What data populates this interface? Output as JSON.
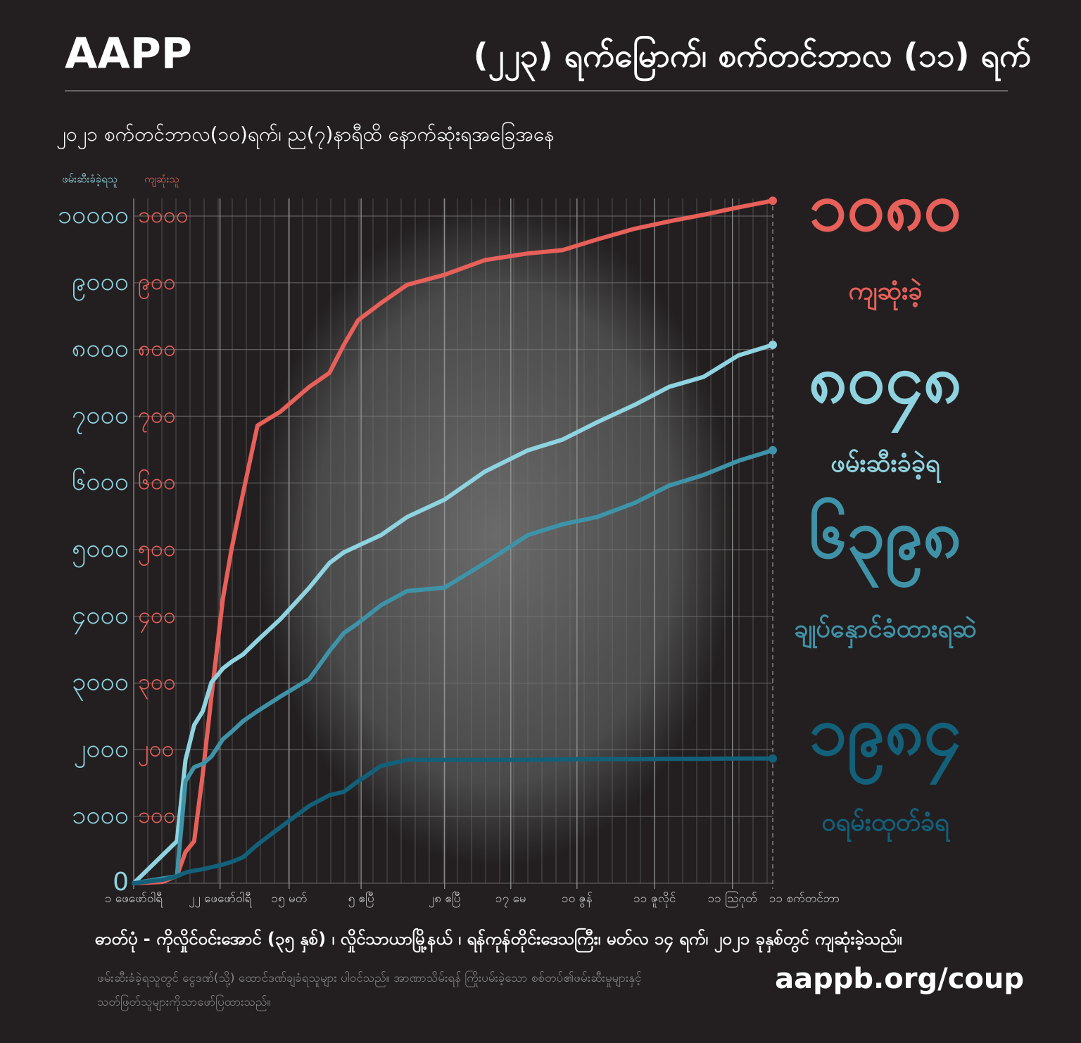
{
  "header": {
    "brand": "AAPP",
    "title": "(၂၂၃) ရက်မြောက်၊ စက်တင်ဘာလ (၁၁) ရက်"
  },
  "chart_data": {
    "type": "line",
    "subtitle": "၂၀၂၁ စက်တင်ဘာလ(၁၀)ရက်၊ ည(၇)နာရီထိ နောက်ဆုံးရအခြေအနေ",
    "ylabel": "ဖမ်းဆီးခံခဲ့ရသူ",
    "y2label": "ကျဆုံးသူ",
    "x": [
      0,
      10,
      15,
      18,
      21,
      24,
      27,
      31,
      34,
      38,
      43,
      51,
      61,
      68,
      73,
      78,
      86,
      95,
      108,
      122,
      137,
      149,
      161,
      174,
      186,
      198,
      210,
      222
    ],
    "xlim": [
      0,
      222
    ],
    "xticks": [
      {
        "value": 0,
        "label": "၁ ဖေဖော်ဝါရီ"
      },
      {
        "value": 30,
        "label": "၂၂ ဖေဖော်ဝါရီ"
      },
      {
        "value": 54,
        "label": "၁၅ မတ်"
      },
      {
        "value": 79,
        "label": "၅ ဧပြီ"
      },
      {
        "value": 108,
        "label": "၂၈ ဧပြီ"
      },
      {
        "value": 131,
        "label": "၁၇ မေ"
      },
      {
        "value": 154,
        "label": "၁၀ ဇွန်"
      },
      {
        "value": 181,
        "label": "၁၁ ဇူလိုင်"
      },
      {
        "value": 208,
        "label": "၁၁ ဩဂုတ်"
      },
      {
        "value": 222,
        "label": "၁၁ စက်တင်ဘာ"
      }
    ],
    "ylim": [
      0,
      10000
    ],
    "yticks": [
      0,
      {
        "value": 1000,
        "label": "၁၀၀၀"
      },
      {
        "value": 2000,
        "label": "၂၀၀၀"
      },
      {
        "value": 3000,
        "label": "၃၀၀၀"
      },
      {
        "value": 4000,
        "label": "၄၀၀၀"
      },
      {
        "value": 5000,
        "label": "၅၀၀၀"
      },
      {
        "value": 6000,
        "label": "၆၀၀၀"
      },
      {
        "value": 7000,
        "label": "၇၀၀၀"
      },
      {
        "value": 8000,
        "label": "၈၀၀၀"
      },
      {
        "value": 9000,
        "label": "၉၀၀၀"
      },
      {
        "value": 10000,
        "label": "၁၀၀၀၀"
      }
    ],
    "y2lim": [
      0,
      1000
    ],
    "y2ticks": [
      {
        "value": 100,
        "label": "၁၀၀"
      },
      {
        "value": 200,
        "label": "၂၀၀"
      },
      {
        "value": 300,
        "label": "၃၀၀"
      },
      {
        "value": 400,
        "label": "၄၀၀"
      },
      {
        "value": 500,
        "label": "၅၀၀"
      },
      {
        "value": 600,
        "label": "၆၀၀"
      },
      {
        "value": 700,
        "label": "၇၀၀"
      },
      {
        "value": 800,
        "label": "၈၀၀"
      },
      {
        "value": 900,
        "label": "၉၀၀"
      },
      {
        "value": 1000,
        "label": "၁၀၀၀"
      }
    ],
    "grid": true,
    "series": [
      {
        "name": "ကျဆုံးခဲ့",
        "total": "၁၀၈၀",
        "color": "#e8605a",
        "axis": "y2",
        "values": [
          0,
          2,
          11,
          47,
          63,
          164,
          280,
          427,
          501,
          585,
          686,
          707,
          744,
          765,
          807,
          844,
          870,
          897,
          912,
          934,
          944,
          949,
          965,
          981,
          992,
          1002,
          1013,
          1023
        ]
      },
      {
        "name": "ဖမ်းဆီးခံခဲ့ရ",
        "total": "၈၀၄၈",
        "color": "#8fd3e0",
        "values": [
          0,
          420,
          630,
          1850,
          2370,
          2580,
          3010,
          3220,
          3320,
          3430,
          3640,
          3960,
          4430,
          4800,
          4960,
          5060,
          5220,
          5490,
          5750,
          6170,
          6490,
          6650,
          6910,
          7170,
          7440,
          7590,
          7910,
          8070
        ]
      },
      {
        "name": "ချုပ်နှောင်ခံထားရဆဲ",
        "total": "၆၃၉၈",
        "color": "#3f93a8",
        "values": [
          0,
          70,
          105,
          1530,
          1740,
          1790,
          1900,
          2160,
          2270,
          2430,
          2580,
          2800,
          3060,
          3480,
          3750,
          3900,
          4170,
          4380,
          4430,
          4800,
          5220,
          5380,
          5490,
          5700,
          5960,
          6120,
          6330,
          6490
        ]
      },
      {
        "name": "ဝရမ်းထုတ်ခံရ",
        "total": "၁၉၈၄",
        "color": "#13607a",
        "values": [
          0,
          50,
          105,
          160,
          190,
          210,
          240,
          280,
          320,
          390,
          580,
          840,
          1160,
          1320,
          1370,
          1530,
          1760,
          1850,
          1850,
          1850,
          1850,
          1855,
          1860,
          1860,
          1865,
          1865,
          1870,
          1870
        ]
      }
    ]
  },
  "footer": {
    "caption": "ဓာတ်ပုံ -   ကိုလှိုင်ဝင်းအောင် (၃၅ နှစ်) ၊ လှိုင်သာယာမြို့နယ် ၊ ရန်ကုန်တိုင်းဒေသကြီး၊ မတ်လ ၁၄ ရက်၊ ၂၀၂၁ ခုနှစ်တွင် ကျဆုံးခဲ့သည်။",
    "note": [
      "ဖမ်းဆီးခံခဲ့ရသူတွင် ငွေဒဏ်(သို့) ထောင်ဒဏ်ချခံရသူများ ပါဝင်သည်။ အာဏာသိမ်းရန် ကြိုးပမ်းခဲ့သော စစ်တပ်၏ဖမ်းဆီးမှုများနှင့်",
      "သတ်ဖြတ်သူများကိုသာဖော်ပြထားသည်။"
    ],
    "url": "aappb.org/coup"
  }
}
